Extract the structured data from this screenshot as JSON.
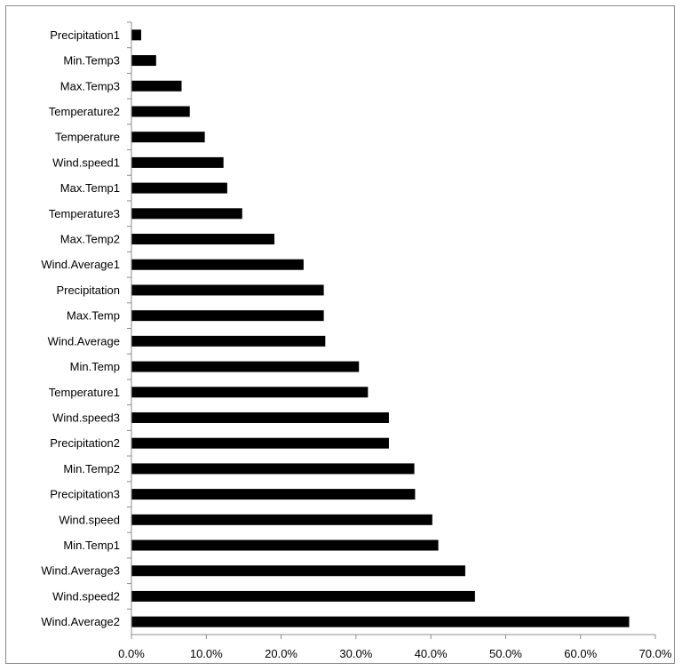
{
  "chart_data": {
    "type": "bar",
    "orientation": "horizontal",
    "title": "",
    "xlabel": "",
    "ylabel": "",
    "xlim": [
      0,
      0.7
    ],
    "grid": false,
    "legend": "none",
    "bar_color": "#000000",
    "categories": [
      "Precipitation1",
      "Min.Temp3",
      "Max.Temp3",
      "Temperature2",
      "Temperature",
      "Wind.speed1",
      "Max.Temp1",
      "Temperature3",
      "Max.Temp2",
      "Wind.Average1",
      "Precipitation",
      "Max.Temp",
      "Wind.Average",
      "Min.Temp",
      "Temperature1",
      "Wind.speed3",
      "Precipitation2",
      "Min.Temp2",
      "Precipitation3",
      "Wind.speed",
      "Min.Temp1",
      "Wind.Average3",
      "Wind.speed2",
      "Wind.Average2"
    ],
    "values": [
      0.013,
      0.033,
      0.067,
      0.078,
      0.098,
      0.123,
      0.128,
      0.148,
      0.191,
      0.23,
      0.257,
      0.257,
      0.259,
      0.304,
      0.316,
      0.344,
      0.344,
      0.378,
      0.379,
      0.402,
      0.41,
      0.446,
      0.459,
      0.665
    ],
    "x_ticks": [
      "0.0%",
      "10.0%",
      "20.0%",
      "30.0%",
      "40.0%",
      "50.0%",
      "60.0%",
      "70.0%"
    ]
  }
}
